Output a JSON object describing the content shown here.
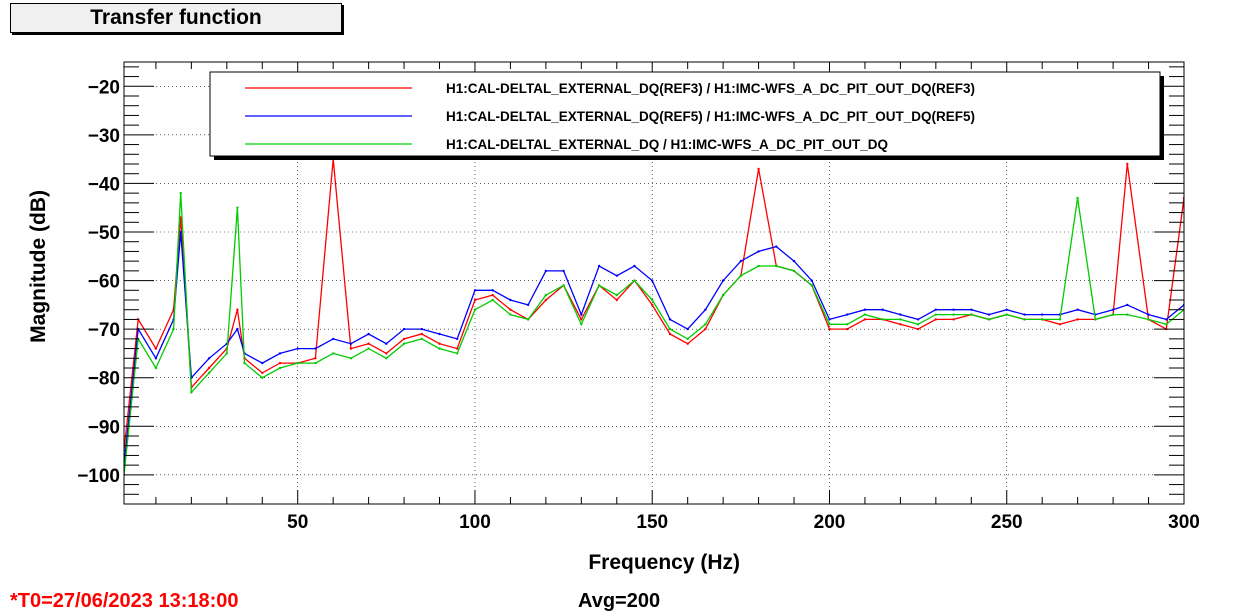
{
  "title": "Transfer function",
  "footer": {
    "t0": "*T0=27/06/2023 13:18:00",
    "avg": "Avg=200"
  },
  "chart_data": {
    "type": "line",
    "xlabel": "Frequency (Hz)",
    "ylabel": "Magnitude (dB)",
    "xlim": [
      1,
      300
    ],
    "ylim": [
      -106,
      -15
    ],
    "xticks": [
      50,
      100,
      150,
      200,
      250,
      300
    ],
    "yticks": [
      -20,
      -30,
      -40,
      -50,
      -60,
      -70,
      -80,
      -90,
      -100
    ],
    "grid": true,
    "legend_position": "top-right",
    "series": [
      {
        "name": "H1:CAL-DELTAL_EXTERNAL_DQ(REF3) / H1:IMC-WFS_A_DC_PIT_OUT_DQ(REF3)",
        "color": "#ff0000",
        "x": [
          1,
          5,
          10,
          15,
          17,
          20,
          25,
          30,
          33,
          35,
          40,
          45,
          50,
          55,
          60,
          65,
          70,
          75,
          80,
          85,
          90,
          95,
          100,
          105,
          110,
          115,
          120,
          125,
          130,
          135,
          140,
          145,
          150,
          155,
          160,
          165,
          170,
          175,
          180,
          185,
          190,
          195,
          200,
          205,
          210,
          215,
          220,
          225,
          230,
          235,
          240,
          245,
          250,
          255,
          260,
          265,
          270,
          275,
          280,
          284,
          290,
          295,
          300
        ],
        "y": [
          -95,
          -68,
          -74,
          -66,
          -47,
          -82,
          -78,
          -74,
          -66,
          -76,
          -79,
          -77,
          -77,
          -76,
          -35,
          -74,
          -73,
          -75,
          -72,
          -71,
          -73,
          -74,
          -64,
          -63,
          -66,
          -68,
          -64,
          -61,
          -68,
          -61,
          -64,
          -60,
          -65,
          -71,
          -73,
          -70,
          -63,
          -59,
          -37,
          -57,
          -58,
          -61,
          -70,
          -70,
          -68,
          -68,
          -69,
          -70,
          -68,
          -68,
          -67,
          -68,
          -67,
          -68,
          -68,
          -69,
          -68,
          -68,
          -67,
          -36,
          -68,
          -70,
          -43
        ]
      },
      {
        "name": "H1:CAL-DELTAL_EXTERNAL_DQ(REF5) / H1:IMC-WFS_A_DC_PIT_OUT_DQ(REF5)",
        "color": "#0000ff",
        "x": [
          1,
          5,
          10,
          15,
          17,
          20,
          25,
          30,
          33,
          35,
          40,
          45,
          50,
          55,
          60,
          65,
          70,
          75,
          80,
          85,
          90,
          95,
          100,
          105,
          110,
          115,
          120,
          125,
          130,
          135,
          140,
          145,
          150,
          155,
          160,
          165,
          170,
          175,
          180,
          185,
          190,
          195,
          200,
          205,
          210,
          215,
          220,
          225,
          230,
          235,
          240,
          245,
          250,
          255,
          260,
          265,
          270,
          275,
          280,
          284,
          290,
          295,
          300
        ],
        "y": [
          -98,
          -70,
          -76,
          -68,
          -50,
          -80,
          -76,
          -73,
          -70,
          -75,
          -77,
          -75,
          -74,
          -74,
          -72,
          -73,
          -71,
          -73,
          -70,
          -70,
          -71,
          -72,
          -62,
          -62,
          -64,
          -65,
          -58,
          -58,
          -67,
          -57,
          -59,
          -57,
          -60,
          -68,
          -70,
          -66,
          -60,
          -56,
          -54,
          -53,
          -56,
          -60,
          -68,
          -67,
          -66,
          -66,
          -67,
          -68,
          -66,
          -66,
          -66,
          -67,
          -66,
          -67,
          -67,
          -67,
          -66,
          -67,
          -66,
          -65,
          -67,
          -68,
          -65
        ]
      },
      {
        "name": "H1:CAL-DELTAL_EXTERNAL_DQ / H1:IMC-WFS_A_DC_PIT_OUT_DQ",
        "color": "#00cc00",
        "x": [
          1,
          5,
          10,
          15,
          17,
          20,
          25,
          30,
          33,
          35,
          40,
          45,
          50,
          55,
          60,
          65,
          70,
          75,
          80,
          85,
          90,
          95,
          100,
          105,
          110,
          115,
          120,
          125,
          130,
          135,
          140,
          145,
          150,
          155,
          160,
          165,
          170,
          175,
          180,
          185,
          190,
          195,
          200,
          205,
          210,
          215,
          220,
          225,
          230,
          235,
          240,
          245,
          250,
          255,
          260,
          265,
          270,
          275,
          280,
          284,
          290,
          295,
          300
        ],
        "y": [
          -100,
          -72,
          -78,
          -70,
          -42,
          -83,
          -79,
          -75,
          -45,
          -77,
          -80,
          -78,
          -77,
          -77,
          -75,
          -76,
          -74,
          -76,
          -73,
          -72,
          -74,
          -75,
          -66,
          -64,
          -67,
          -68,
          -63,
          -61,
          -69,
          -61,
          -63,
          -60,
          -64,
          -70,
          -72,
          -69,
          -63,
          -59,
          -57,
          -57,
          -58,
          -61,
          -69,
          -69,
          -67,
          -68,
          -68,
          -69,
          -67,
          -67,
          -67,
          -68,
          -67,
          -68,
          -68,
          -68,
          -43,
          -68,
          -67,
          -67,
          -68,
          -69,
          -66
        ]
      }
    ]
  }
}
